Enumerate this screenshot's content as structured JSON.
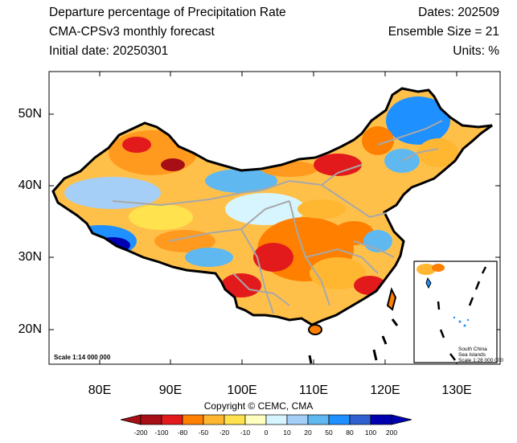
{
  "header": {
    "title": "Departure percentage of Precipitation Rate",
    "model": "CMA-CPSv3 monthly forecast",
    "initial_date": "Initial date: 20250301",
    "dates": "Dates: 202509",
    "ensemble": "Ensemble Size = 21",
    "units": "Units: %"
  },
  "axes": {
    "lat_ticks": [
      "50N",
      "40N",
      "30N",
      "20N"
    ],
    "lon_ticks": [
      "80E",
      "90E",
      "100E",
      "110E",
      "120E",
      "130E"
    ]
  },
  "map": {
    "scale_main": "Scale 1:14 000 000",
    "inset_lines": [
      "South China",
      "Sea Islands",
      "Scale 1:28 000 000"
    ]
  },
  "copyright": "Copyright © CEMC, CMA",
  "colorbar": {
    "labels": [
      "-200",
      "-100",
      "-80",
      "-50",
      "-20",
      "-10",
      "0",
      "10",
      "20",
      "50",
      "80",
      "100",
      "200"
    ],
    "colors": [
      "#a50f15",
      "#e31a1c",
      "#ff7f00",
      "#ffb732",
      "#ffe24d",
      "#ffffbf",
      "#d6f5ff",
      "#a6cff7",
      "#5fb8f0",
      "#1e90ff",
      "#3060d0",
      "#0000b0"
    ]
  }
}
